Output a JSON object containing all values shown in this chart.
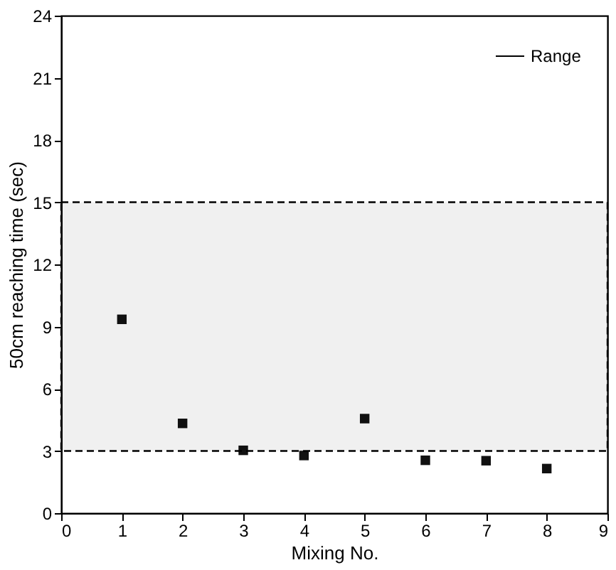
{
  "chart_data": {
    "type": "scatter",
    "xlabel": "Mixing No.",
    "ylabel": "50cm reaching time (sec)",
    "x": [
      1,
      2,
      3,
      4,
      5,
      6,
      7,
      8
    ],
    "series": [
      {
        "color": "#111111",
        "values": [
          9.35,
          4.33,
          3.03,
          2.78,
          4.56,
          2.55,
          2.53,
          2.15
        ]
      }
    ],
    "marker": "square",
    "xlim": [
      0,
      9
    ],
    "xticks": [
      0,
      1,
      2,
      3,
      4,
      5,
      6,
      7,
      8,
      9
    ],
    "ylim": [
      0,
      24
    ],
    "yticks": [
      0,
      3,
      6,
      9,
      12,
      15,
      18,
      21,
      24
    ],
    "bands": [
      {
        "axis": "y",
        "from": 3,
        "to": 15,
        "label": "Range",
        "color": "#000000"
      }
    ],
    "grid": false,
    "legend": "top right"
  }
}
